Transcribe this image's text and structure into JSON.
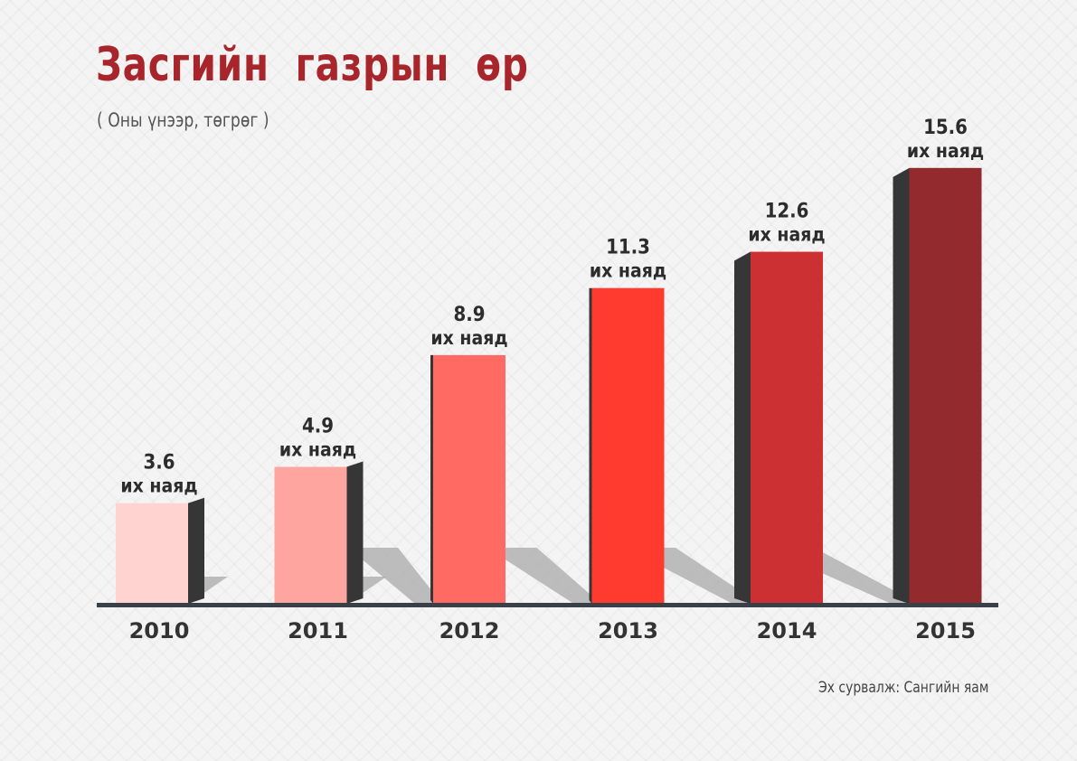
{
  "chart_data": {
    "type": "bar",
    "title": "Засгийн газрын өр",
    "subtitle": "( Оны үнээр, төгрөг )",
    "source": "Эх сурвалж: Сангийн яам",
    "categories": [
      "2010",
      "2011",
      "2012",
      "2013",
      "2014",
      "2015"
    ],
    "values": [
      3.6,
      4.9,
      8.9,
      11.3,
      12.6,
      15.6
    ],
    "value_labels": [
      "3.6",
      "4.9",
      "8.9",
      "11.3",
      "12.6",
      "15.6"
    ],
    "unit_label": "их наяд",
    "ylim": [
      0,
      16.5
    ],
    "grid": false,
    "colors": {
      "bars": [
        "#ffd3cf",
        "#ffa59f",
        "#ff6a63",
        "#ff3b30",
        "#cc3033",
        "#922a2e"
      ],
      "bar_side": "#363636",
      "shadow": "#a9a9a9",
      "baseline": "#3a4048",
      "title": "#a8262b"
    }
  }
}
